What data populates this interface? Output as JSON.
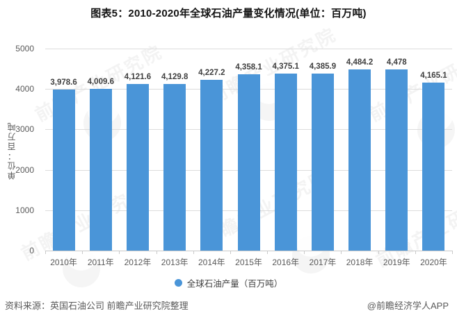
{
  "title": "图表5：2010-2020年全球石油产量变化情况(单位：百万吨)",
  "chart_data": {
    "type": "bar",
    "categories": [
      "2010年",
      "2011年",
      "2012年",
      "2013年",
      "2014年",
      "2015年",
      "2016年",
      "2017年",
      "2018年",
      "2019年",
      "2020年"
    ],
    "values": [
      3978.6,
      4009.6,
      4121.6,
      4129.8,
      4227.2,
      4358.1,
      4375.1,
      4385.9,
      4484.2,
      4478,
      4165.1
    ],
    "value_labels": [
      "3,978.6",
      "4,009.6",
      "4,121.6",
      "4,129.8",
      "4,227.2",
      "4,358.1",
      "4,375.1",
      "4,385.9",
      "4,484.2",
      "4,478",
      "4,165.1"
    ],
    "title": "图表5：2010-2020年全球石油产量变化情况(单位：百万吨)",
    "xlabel": "",
    "ylabel": "单位：百万吨",
    "ylim": [
      0,
      5000
    ],
    "ytick_step": 1000,
    "ytick_labels": [
      "0",
      "1000",
      "2000",
      "3000",
      "4000",
      "5000"
    ],
    "grid": true,
    "legend_position": "bottom",
    "bar_color": "#4a95d8",
    "legend": [
      {
        "label": "全球石油产量（百万吨）",
        "color": "#4a95d8"
      }
    ]
  },
  "footer": {
    "source": "资料来源：英国石油公司 前瞻产业研究院整理",
    "credit": "@前瞻经济学人APP"
  },
  "watermark": {
    "text": "前瞻产业研究院"
  }
}
